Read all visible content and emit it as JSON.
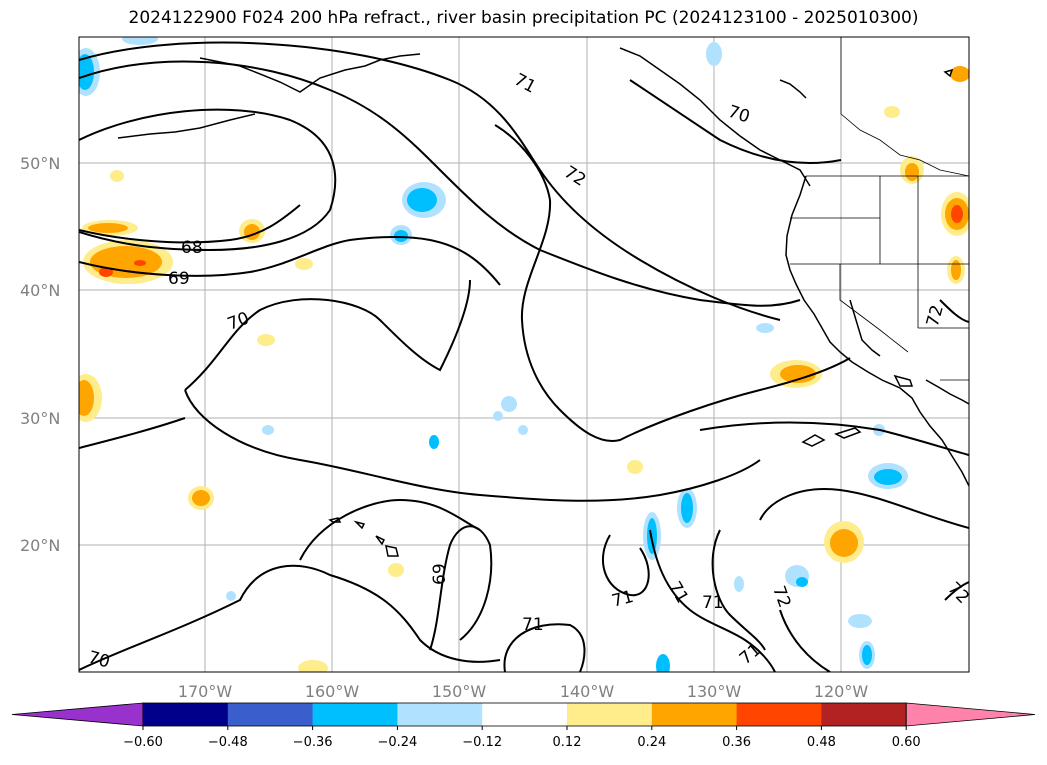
{
  "title": "2024122900 F024 200 hPa refract., river basin precipitation PC (2024123100 - 2025010300)",
  "map": {
    "lat_labels": [
      "50°N",
      "40°N",
      "30°N",
      "20°N"
    ],
    "lon_labels": [
      "170°W",
      "160°W",
      "150°W",
      "140°W",
      "130°W",
      "120°W"
    ],
    "contour_labels": [
      "71",
      "70",
      "72",
      "68",
      "69",
      "70",
      "72",
      "69",
      "71",
      "71",
      "71",
      "72",
      "71",
      "71",
      "70",
      "72"
    ]
  },
  "colorbar": {
    "ticks": [
      "−0.60",
      "−0.48",
      "−0.36",
      "−0.24",
      "−0.12",
      "0.12",
      "0.24",
      "0.36",
      "0.48",
      "0.60"
    ],
    "colors": [
      "#9932cc",
      "#00008b",
      "#3a5fcd",
      "#00bfff",
      "#b0e2ff",
      "#ffffff",
      "#ffec8b",
      "#ffa500",
      "#ff4500",
      "#b22222",
      "#ff82ab"
    ]
  }
}
